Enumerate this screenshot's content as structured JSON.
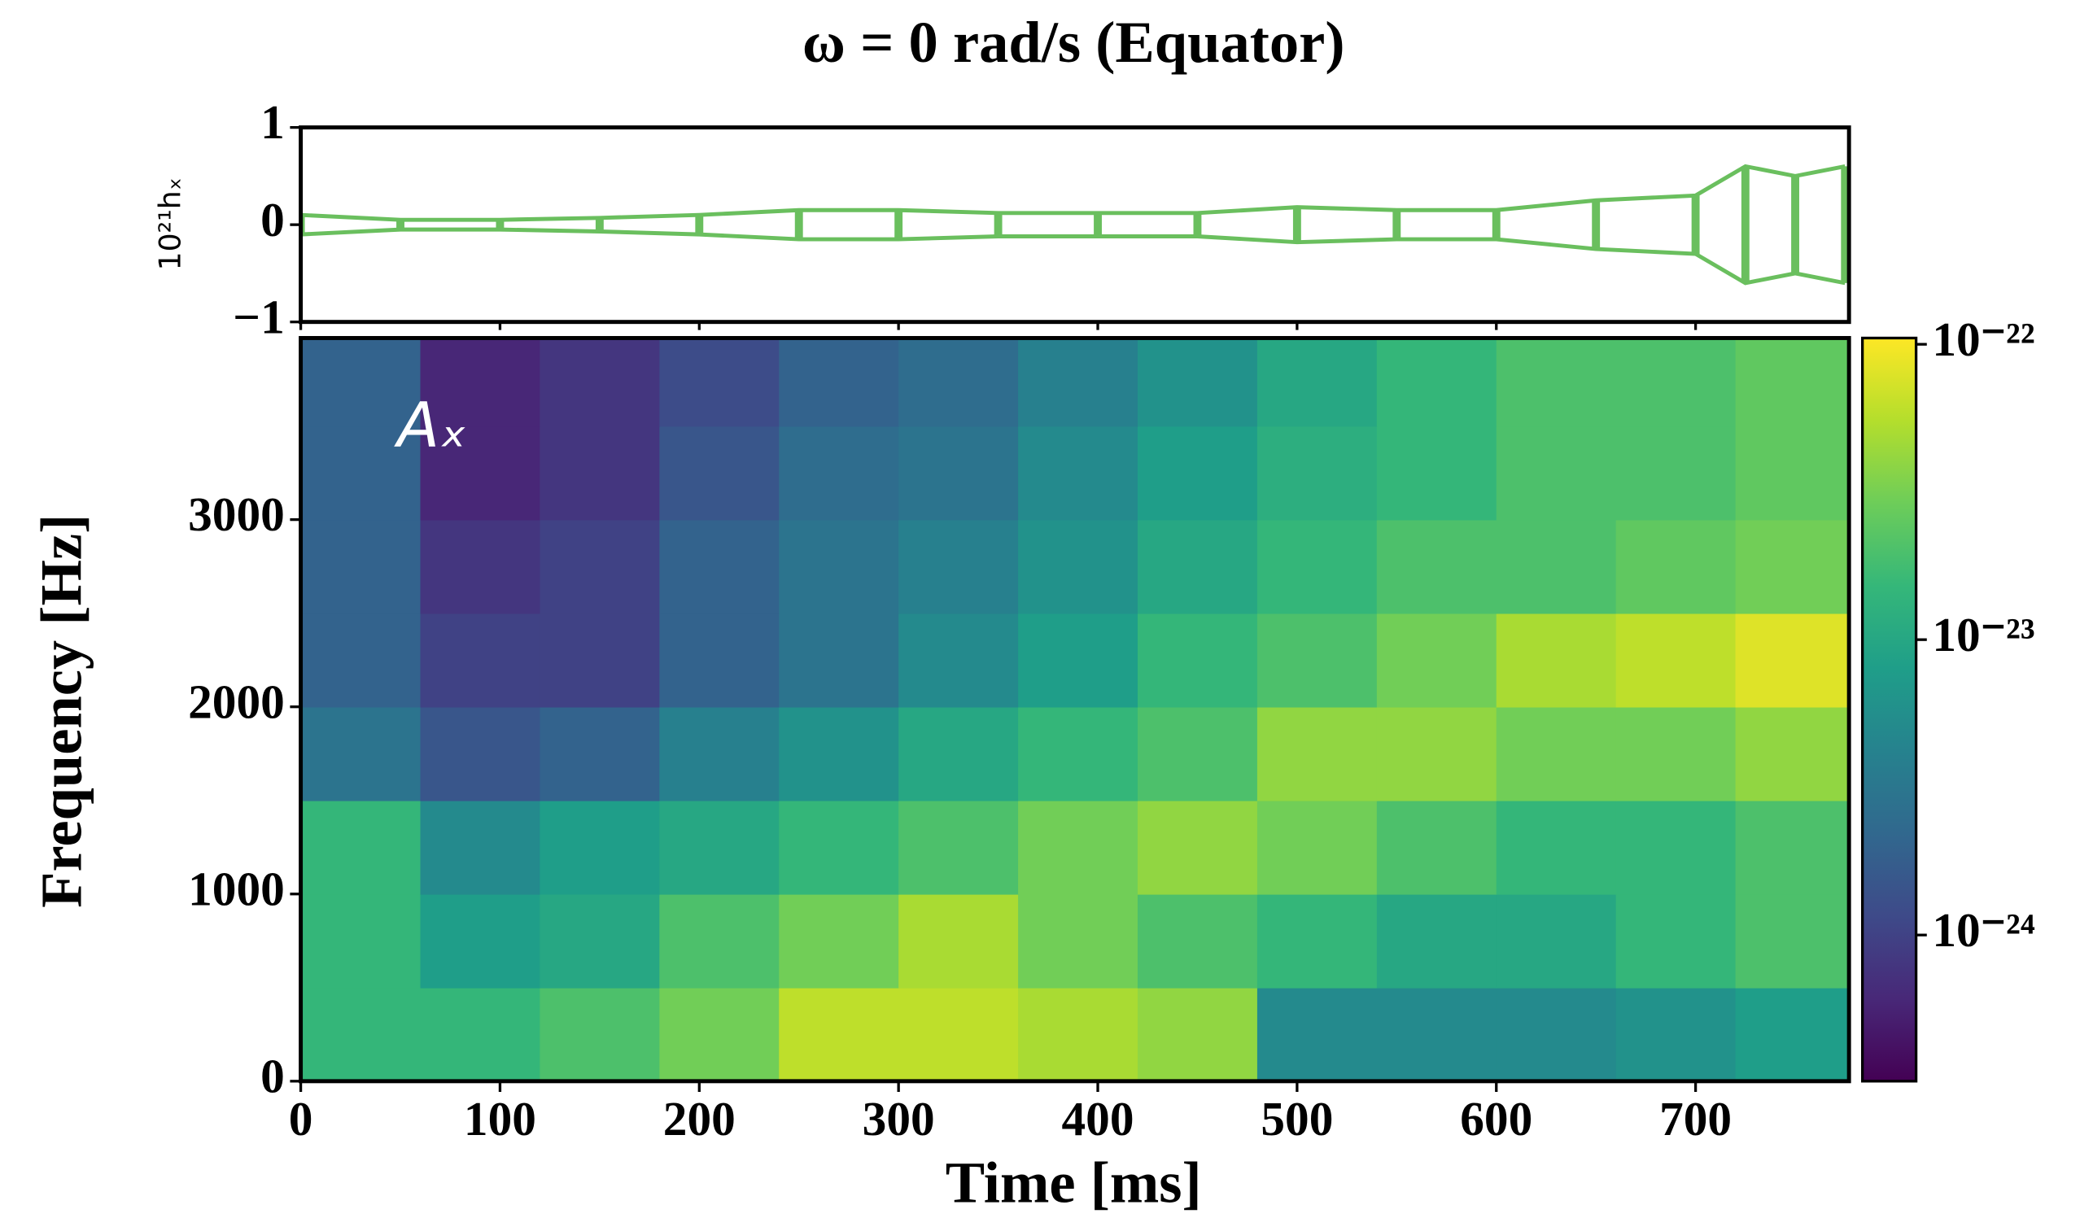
{
  "chart_data": [
    {
      "type": "line",
      "title": "ω = 0 rad/s (Equator)",
      "ylabel": "10²¹hₓ",
      "color": "#6abf5e",
      "x": [
        0,
        50,
        100,
        150,
        200,
        250,
        300,
        350,
        400,
        450,
        500,
        550,
        600,
        650,
        700,
        725,
        750,
        775
      ],
      "values": [
        0.1,
        0.05,
        0.05,
        0.07,
        0.1,
        0.15,
        0.15,
        0.12,
        0.12,
        0.12,
        0.18,
        0.15,
        0.15,
        0.25,
        0.3,
        0.6,
        0.5,
        0.6
      ],
      "xlim": [
        0,
        777
      ],
      "ylim": [
        -1,
        1
      ],
      "xticks": [
        0,
        100,
        200,
        300,
        400,
        500,
        600,
        700
      ],
      "yticks": [
        {
          "value": -1,
          "label": "−1"
        },
        0,
        1
      ]
    },
    {
      "type": "heatmap",
      "annotation": "Aₓ",
      "xlabel": "Time [ms]",
      "ylabel": "Frequency [Hz]",
      "colormap": "viridis",
      "x_edges": [
        0,
        60,
        120,
        180,
        240,
        300,
        360,
        420,
        480,
        540,
        600,
        660,
        720,
        780
      ],
      "y_edges": [
        0,
        500,
        1000,
        1500,
        2000,
        2500,
        3000,
        3500,
        4000
      ],
      "values": [
        [
          1.5e-23,
          1.5e-23,
          2e-23,
          3e-23,
          6e-23,
          6e-23,
          5e-23,
          4e-23,
          5e-24,
          5e-24,
          5e-24,
          6e-24,
          8e-24
        ],
        [
          1.5e-23,
          8e-24,
          1e-23,
          2e-23,
          3e-23,
          5e-23,
          3e-23,
          2e-23,
          1.5e-23,
          1e-23,
          1e-23,
          1.5e-23,
          2e-23
        ],
        [
          1.5e-23,
          5e-24,
          8e-24,
          1e-23,
          1.5e-23,
          2e-23,
          3e-23,
          4e-23,
          3e-23,
          2e-23,
          1.5e-23,
          1.5e-23,
          2e-23
        ],
        [
          3e-24,
          1.5e-24,
          2e-24,
          4e-24,
          6e-24,
          1e-23,
          1.5e-23,
          2e-23,
          4e-23,
          4e-23,
          3e-23,
          3e-23,
          4e-23
        ],
        [
          2e-24,
          1e-24,
          1e-24,
          2e-24,
          3e-24,
          5e-24,
          8e-24,
          1.5e-23,
          2e-23,
          3e-23,
          5e-23,
          6e-23,
          8e-23
        ],
        [
          2e-24,
          8e-25,
          1e-24,
          2e-24,
          3e-24,
          4e-24,
          6e-24,
          1e-23,
          1.5e-23,
          2e-23,
          2e-23,
          2.5e-23,
          3e-23
        ],
        [
          2e-24,
          6e-25,
          8e-25,
          1.5e-24,
          2.5e-24,
          3e-24,
          5e-24,
          8e-24,
          1.2e-23,
          1.5e-23,
          2e-23,
          2e-23,
          2.5e-23
        ],
        [
          2e-24,
          6e-25,
          8e-25,
          1.2e-24,
          2e-24,
          2.5e-24,
          4e-24,
          6e-24,
          1e-23,
          1.5e-23,
          2e-23,
          2e-23,
          2.5e-23
        ]
      ],
      "xlim": [
        0,
        777
      ],
      "ylim": [
        0,
        3970
      ],
      "xticks": [
        0,
        100,
        200,
        300,
        400,
        500,
        600,
        700
      ],
      "yticks": [
        0,
        1000,
        2000,
        3000
      ],
      "colorbar": {
        "log": true,
        "lim": [
          3.2e-25,
          1.05e-22
        ],
        "ticks": [
          {
            "value": 1e-24,
            "label": "10⁻²⁴"
          },
          {
            "value": 1e-23,
            "label": "10⁻²³"
          },
          {
            "value": 1e-22,
            "label": "10⁻²²"
          }
        ]
      }
    }
  ]
}
